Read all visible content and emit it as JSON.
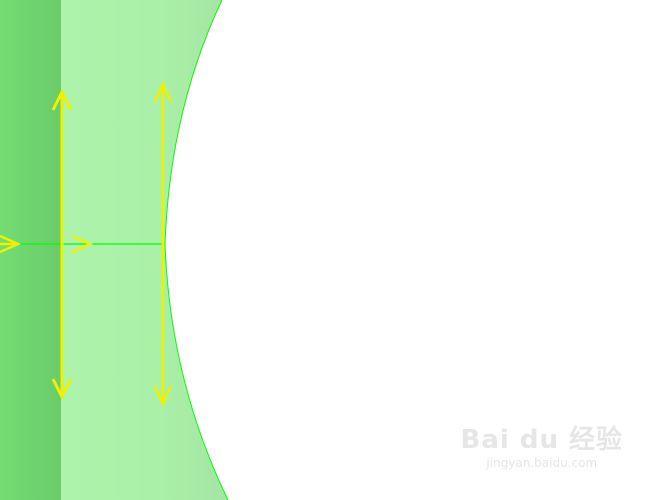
{
  "colors": {
    "dark_strip": "#70d970",
    "light_region": "#aaf2a8",
    "edge_line": "#00ff00",
    "arrows": "#eef200",
    "background": "#ffffff"
  },
  "watermark": {
    "brand": "Bai du 经验",
    "url": "jingyan.baidu.com"
  }
}
